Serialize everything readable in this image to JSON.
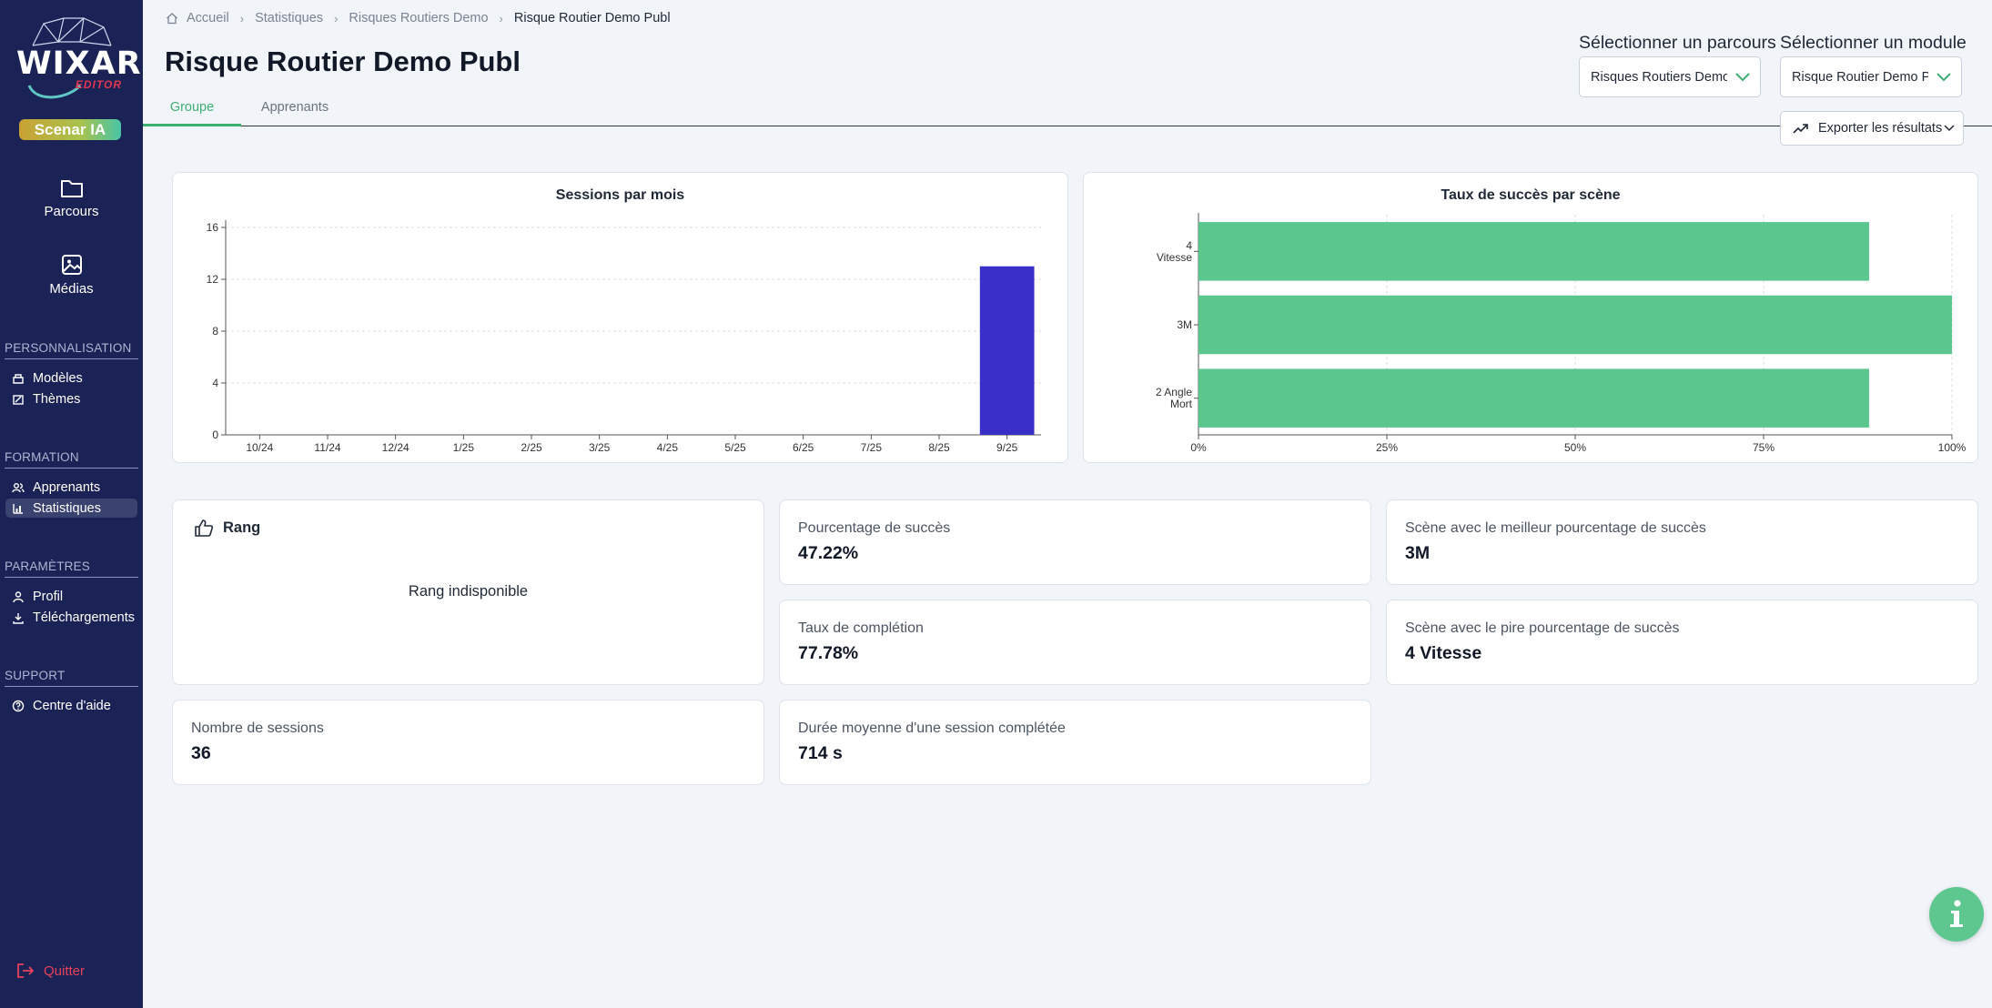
{
  "app": {
    "logo_text": "WIXAR",
    "logo_sub": "EDITOR",
    "badge": "Scenar IA"
  },
  "sidebar": {
    "main": [
      {
        "label": "Parcours",
        "icon": "folder-icon"
      },
      {
        "label": "Médias",
        "icon": "image-icon"
      }
    ],
    "sections": [
      {
        "title": "PERSONNALISATION",
        "items": [
          {
            "label": "Modèles",
            "icon": "template-icon"
          },
          {
            "label": "Thèmes",
            "icon": "palette-icon"
          }
        ]
      },
      {
        "title": "FORMATION",
        "items": [
          {
            "label": "Apprenants",
            "icon": "users-icon"
          },
          {
            "label": "Statistiques",
            "icon": "chart-icon",
            "active": true
          }
        ]
      },
      {
        "title": "PARAMÈTRES",
        "items": [
          {
            "label": "Profil",
            "icon": "user-icon"
          },
          {
            "label": "Téléchargements",
            "icon": "download-icon"
          }
        ]
      },
      {
        "title": "SUPPORT",
        "items": [
          {
            "label": "Centre d'aide",
            "icon": "help-icon"
          }
        ]
      }
    ],
    "quit_label": "Quitter"
  },
  "breadcrumb": [
    "Accueil",
    "Statistiques",
    "Risques Routiers Demo",
    "Risque Routier Demo Publ"
  ],
  "page": {
    "title": "Risque Routier Demo Publ",
    "tabs": [
      {
        "label": "Groupe",
        "active": true
      },
      {
        "label": "Apprenants",
        "active": false
      }
    ]
  },
  "selectors": {
    "parcours": {
      "label": "Sélectionner un parcours",
      "value": "Risques Routiers Demo"
    },
    "module": {
      "label": "Sélectionner un module",
      "value": "Risque Routier Demo Publ"
    },
    "export_label": "Exporter les résultats"
  },
  "chart_data": [
    {
      "type": "bar",
      "title": "Sessions par mois",
      "categories": [
        "10/24",
        "11/24",
        "12/24",
        "1/25",
        "2/25",
        "3/25",
        "4/25",
        "5/25",
        "6/25",
        "7/25",
        "8/25",
        "9/25"
      ],
      "values": [
        0,
        0,
        0,
        0,
        0,
        0,
        0,
        0,
        0,
        0,
        0,
        13
      ],
      "yticks": [
        0,
        4,
        8,
        12,
        16
      ],
      "ylim": [
        0,
        16
      ],
      "color": "#3a2ec9",
      "grid": true
    },
    {
      "type": "bar",
      "orientation": "horizontal",
      "title": "Taux de succès par scène",
      "categories": [
        [
          "4",
          "Vitesse"
        ],
        [
          "3M"
        ],
        [
          "2 Angle",
          "Mort"
        ]
      ],
      "values": [
        89,
        100,
        89
      ],
      "xticks": [
        "0%",
        "25%",
        "50%",
        "75%",
        "100%"
      ],
      "xlim": [
        0,
        100
      ],
      "color": "#5bc68e",
      "grid": true
    }
  ],
  "stats": {
    "rank": {
      "title": "Rang",
      "empty": "Rang indisponible"
    },
    "success_pct": {
      "label": "Pourcentage de succès",
      "value": "47.22%"
    },
    "best_scene": {
      "label": "Scène avec le meilleur pourcentage de succès",
      "value": "3M"
    },
    "completion": {
      "label": "Taux de complétion",
      "value": "77.78%"
    },
    "worst_scene": {
      "label": "Scène avec le pire pourcentage de succès",
      "value": "4 Vitesse"
    },
    "sessions": {
      "label": "Nombre de sessions",
      "value": "36"
    },
    "avg_duration": {
      "label": "Durée moyenne d'une session complétée",
      "value": "714 s"
    }
  }
}
